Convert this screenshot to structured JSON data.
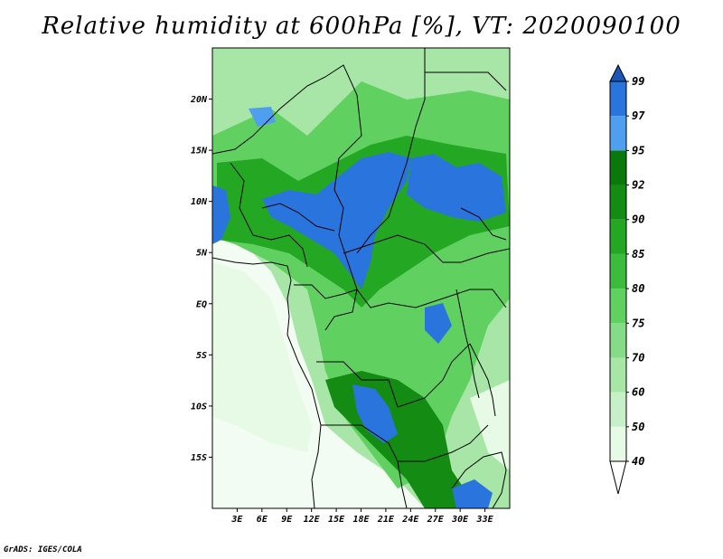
{
  "title": "Relative humidity at 600hPa [%], VT: 2020090100",
  "credit": "GrADS: IGES/COLA",
  "map": {
    "lon_range": [
      0,
      36
    ],
    "lat_range": [
      -20,
      25
    ],
    "lat_ticks": [
      {
        "label": "20N",
        "value": 20
      },
      {
        "label": "15N",
        "value": 15
      },
      {
        "label": "10N",
        "value": 10
      },
      {
        "label": "5N",
        "value": 5
      },
      {
        "label": "EQ",
        "value": 0
      },
      {
        "label": "5S",
        "value": -5
      },
      {
        "label": "10S",
        "value": -10
      },
      {
        "label": "15S",
        "value": -15
      }
    ],
    "lon_ticks": [
      {
        "label": "3E",
        "value": 3
      },
      {
        "label": "6E",
        "value": 6
      },
      {
        "label": "9E",
        "value": 9
      },
      {
        "label": "12E",
        "value": 12
      },
      {
        "label": "15E",
        "value": 15
      },
      {
        "label": "18E",
        "value": 18
      },
      {
        "label": "21E",
        "value": 21
      },
      {
        "label": "24E",
        "value": 24
      },
      {
        "label": "27E",
        "value": 27
      },
      {
        "label": "30E",
        "value": 30
      },
      {
        "label": "33E",
        "value": 33
      }
    ]
  },
  "colorbar": {
    "levels": [
      "40",
      "50",
      "60",
      "70",
      "75",
      "80",
      "85",
      "90",
      "92",
      "95",
      "97",
      "99"
    ],
    "colors": [
      "#ffffff",
      "#e6fae6",
      "#c8f0c8",
      "#a8e6a8",
      "#86dc86",
      "#60d060",
      "#3cbc3c",
      "#24a824",
      "#148c14",
      "#0a780a",
      "#4f9ff0",
      "#2a74de",
      "#1a56b8"
    ]
  }
}
